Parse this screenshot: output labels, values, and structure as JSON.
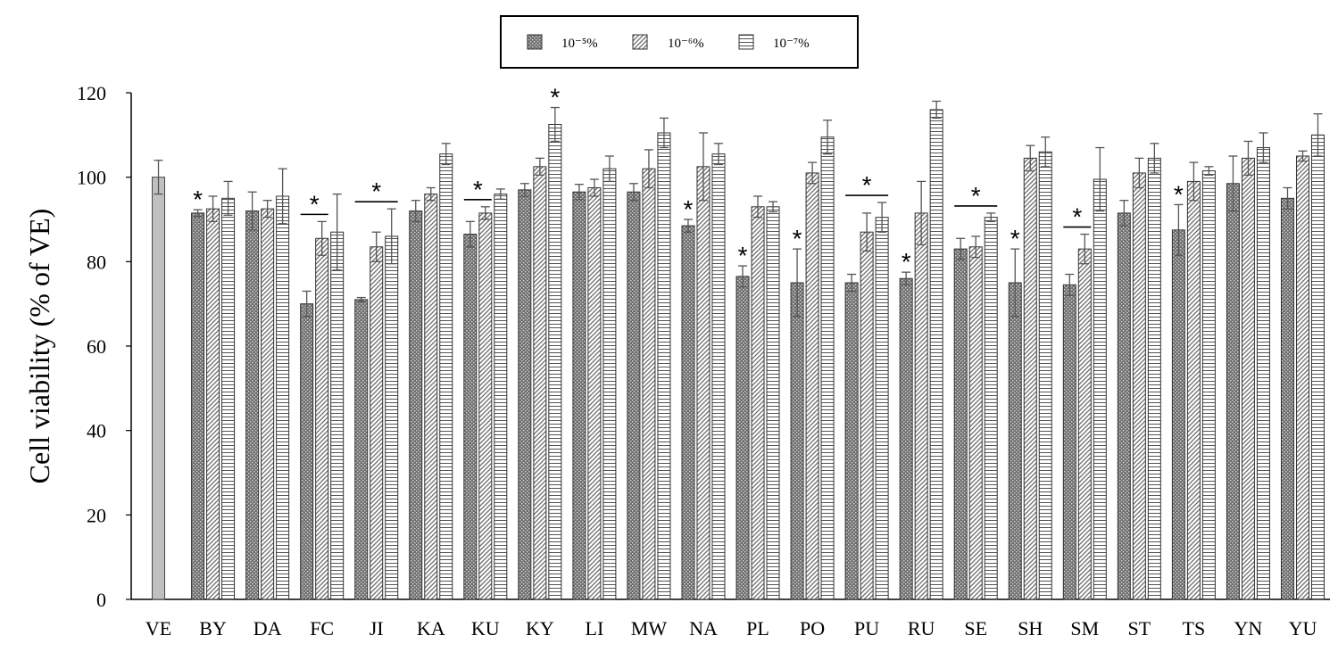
{
  "chart_data": {
    "type": "bar",
    "title": "",
    "xlabel": "",
    "ylabel": "Cell viability (% of VE)",
    "ylim": [
      0,
      120
    ],
    "yticks": [
      "0",
      "20",
      "40",
      "60",
      "80",
      "100",
      "120"
    ],
    "grid": false,
    "legend_position": "top-center",
    "control": {
      "category": "VE",
      "value": 100,
      "error": 4,
      "color": "#c0c0c0"
    },
    "categories": [
      "BY",
      "DA",
      "FC",
      "JI",
      "KA",
      "KU",
      "KY",
      "LI",
      "MW",
      "NA",
      "PL",
      "PO",
      "PU",
      "RU",
      "SE",
      "SH",
      "SM",
      "ST",
      "TS",
      "YN",
      "YU"
    ],
    "series": [
      {
        "name": "10⁻⁵%",
        "pattern": "dots",
        "values": [
          91.5,
          92,
          70,
          71,
          92,
          86.5,
          97,
          96.5,
          96.5,
          88.5,
          76.5,
          75,
          75,
          76,
          83,
          75,
          74.5,
          91.5,
          87.5,
          98.5,
          95
        ],
        "errors": [
          0.8,
          4.5,
          3,
          0.5,
          2.5,
          3,
          1.5,
          1.8,
          2,
          1.5,
          2.5,
          8,
          2,
          1.5,
          2.5,
          8,
          2.5,
          3,
          6,
          6.5,
          2.5
        ]
      },
      {
        "name": "10⁻⁶%",
        "pattern": "diagonal",
        "values": [
          92.5,
          92.5,
          85.5,
          83.5,
          96,
          91.5,
          102.5,
          97.5,
          102,
          102.5,
          93,
          101,
          87,
          91.5,
          83.5,
          104.5,
          83,
          101,
          99,
          104.5,
          105
        ],
        "errors": [
          3,
          2,
          4,
          3.5,
          1.5,
          1.5,
          2,
          2,
          4.5,
          8,
          2.5,
          2.5,
          4.5,
          7.5,
          2.5,
          3,
          3.5,
          3.5,
          4.5,
          4,
          1.2
        ]
      },
      {
        "name": "10⁻⁷%",
        "pattern": "horizontal",
        "values": [
          95,
          95.5,
          87,
          86,
          105.5,
          96,
          112.5,
          102,
          110.5,
          105.5,
          93,
          109.5,
          90.5,
          116,
          90.5,
          106,
          99.5,
          104.5,
          101.5,
          107,
          110
        ],
        "errors": [
          4,
          6.5,
          9,
          6.5,
          2.5,
          1.2,
          4,
          3,
          3.5,
          2.5,
          1.2,
          4,
          3.5,
          2,
          1,
          3.5,
          7.5,
          3.5,
          1,
          3.5,
          5
        ]
      }
    ],
    "significance": [
      {
        "category": "BY",
        "span": "single",
        "bar": 0,
        "label": "*"
      },
      {
        "category": "FC",
        "span": "pair",
        "bars": [
          0,
          1
        ],
        "label": "*"
      },
      {
        "category": "JI",
        "span": "all",
        "bars": [
          0,
          2
        ],
        "label": "*"
      },
      {
        "category": "KU",
        "span": "pair",
        "bars": [
          0,
          1
        ],
        "label": "*"
      },
      {
        "category": "KY",
        "span": "single",
        "bar": 2,
        "label": "*"
      },
      {
        "category": "NA",
        "span": "single",
        "bar": 0,
        "label": "*"
      },
      {
        "category": "PL",
        "span": "single",
        "bar": 0,
        "label": "*"
      },
      {
        "category": "PO",
        "span": "single",
        "bar": 0,
        "label": "*"
      },
      {
        "category": "PU",
        "span": "all",
        "bars": [
          0,
          2
        ],
        "label": "*"
      },
      {
        "category": "RU",
        "span": "single",
        "bar": 0,
        "label": "*"
      },
      {
        "category": "SE",
        "span": "all",
        "bars": [
          0,
          2
        ],
        "label": "*"
      },
      {
        "category": "SH",
        "span": "single",
        "bar": 0,
        "label": "*"
      },
      {
        "category": "SM",
        "span": "pair",
        "bars": [
          0,
          1
        ],
        "label": "*"
      },
      {
        "category": "TS",
        "span": "single",
        "bar": 0,
        "label": "*"
      }
    ]
  }
}
